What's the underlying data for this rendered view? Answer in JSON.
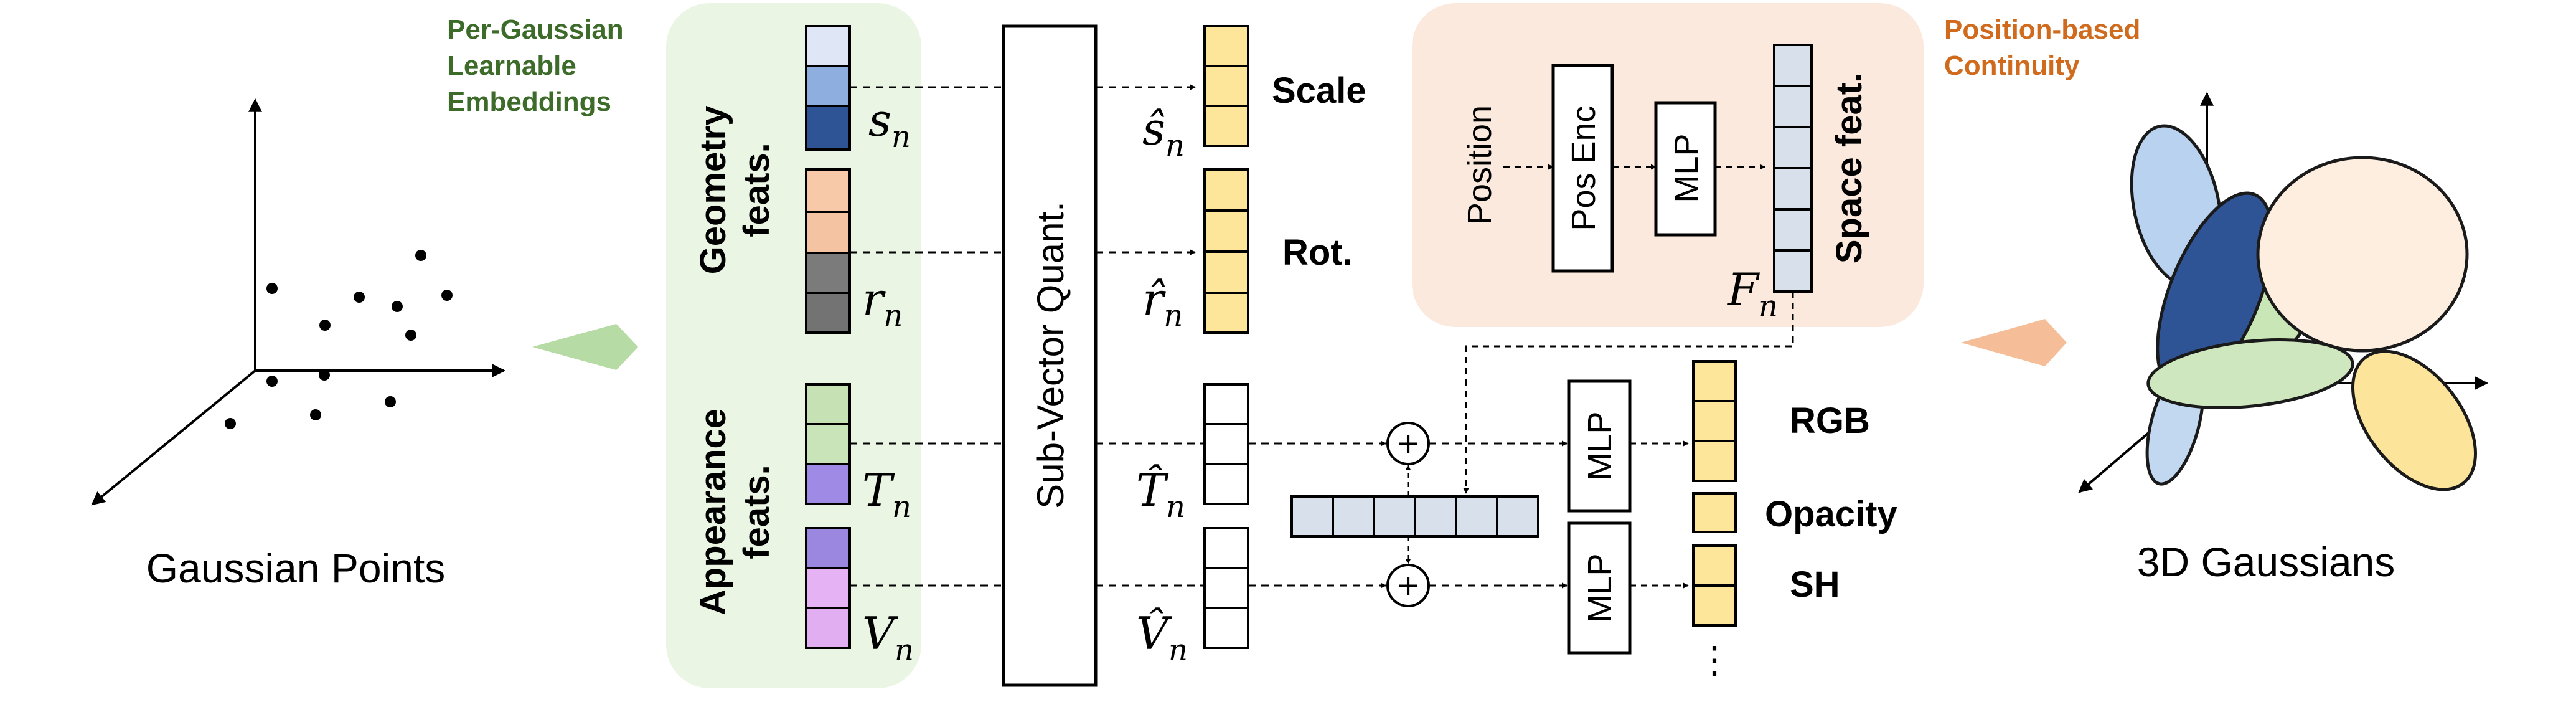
{
  "labels": {
    "gaussian_points": "Gaussian Points",
    "gaussians_3d": "3D Gaussians",
    "per_gaussian_line1": "Per-Gaussian",
    "per_gaussian_line2": "Learnable",
    "per_gaussian_line3": "Embeddings",
    "position_based_line1": "Position-based",
    "position_based_line2": "Continuity",
    "geometry_line1": "Geometry",
    "geometry_line2": "feats.",
    "appearance_line1": "Appearance",
    "appearance_line2": "feats.",
    "sub_vector_quant": "Sub-Vector Quant.",
    "position": "Position",
    "pos_enc": "Pos Enc",
    "mlp": "MLP",
    "space_feat": "Space feat.",
    "scale": "Scale",
    "rot": "Rot.",
    "rgb": "RGB",
    "opacity": "Opacity",
    "sh": "SH",
    "plus": "+",
    "ellipsis": "⋮"
  },
  "math": {
    "s_n": "s",
    "r_n": "r",
    "T_n": "T",
    "V_n": "V",
    "s_hat_n": "ŝ",
    "r_hat_n": "r̂",
    "T_hat_n": "T̂",
    "V_hat_n": "V̂",
    "F_n": "F",
    "sub_n": "n"
  },
  "colors": {
    "green_panel": "#eaf5e4",
    "orange_panel": "#fbe9dd",
    "green_text": "#3d6b2a",
    "orange_text": "#d06a1c",
    "green_arrow": "#b6dba5",
    "orange_arrow": "#f6be98",
    "yellow_cell": "#fde59a",
    "space_cell": "#d8e0ec",
    "scale_1": "#dfe7f6",
    "scale_2": "#8eaee0",
    "scale_3": "#2e5495",
    "rot_1": "#f8c9a8",
    "rot_2": "#f4c4a2",
    "rot_3": "#7b7b7b",
    "rot_4": "#737373",
    "app_1": "#c6e2b5",
    "app_2": "#c9e4b8",
    "app_3": "#9f8ae6",
    "app_4": "#9b86e0",
    "app_5": "#e5b2f3",
    "app_6": "#e2aef2"
  }
}
